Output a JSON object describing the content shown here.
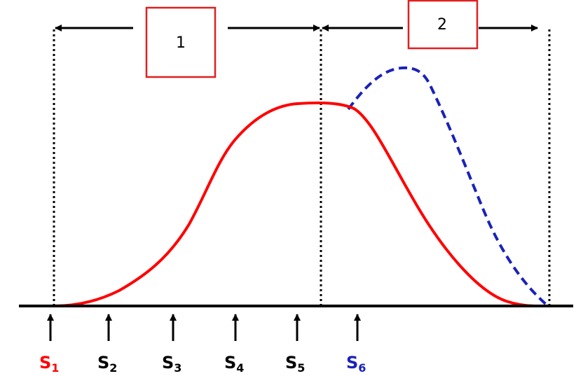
{
  "colors": {
    "red": "#ff0000",
    "blue": "#1a22b8",
    "black": "#000000",
    "box_border": "#e02020"
  },
  "phases": [
    {
      "label": "1"
    },
    {
      "label": "2"
    }
  ],
  "stages": [
    {
      "letter": "S",
      "sub": "1",
      "color": "#ff0000"
    },
    {
      "letter": "S",
      "sub": "2",
      "color": "#000000"
    },
    {
      "letter": "S",
      "sub": "3",
      "color": "#000000"
    },
    {
      "letter": "S",
      "sub": "4",
      "color": "#000000"
    },
    {
      "letter": "S",
      "sub": "5",
      "color": "#000000"
    },
    {
      "letter": "S",
      "sub": "6",
      "color": "#1a22b8"
    }
  ],
  "icons": [
    "arrow-left-icon",
    "arrow-right-icon",
    "arrow-up-icon"
  ]
}
